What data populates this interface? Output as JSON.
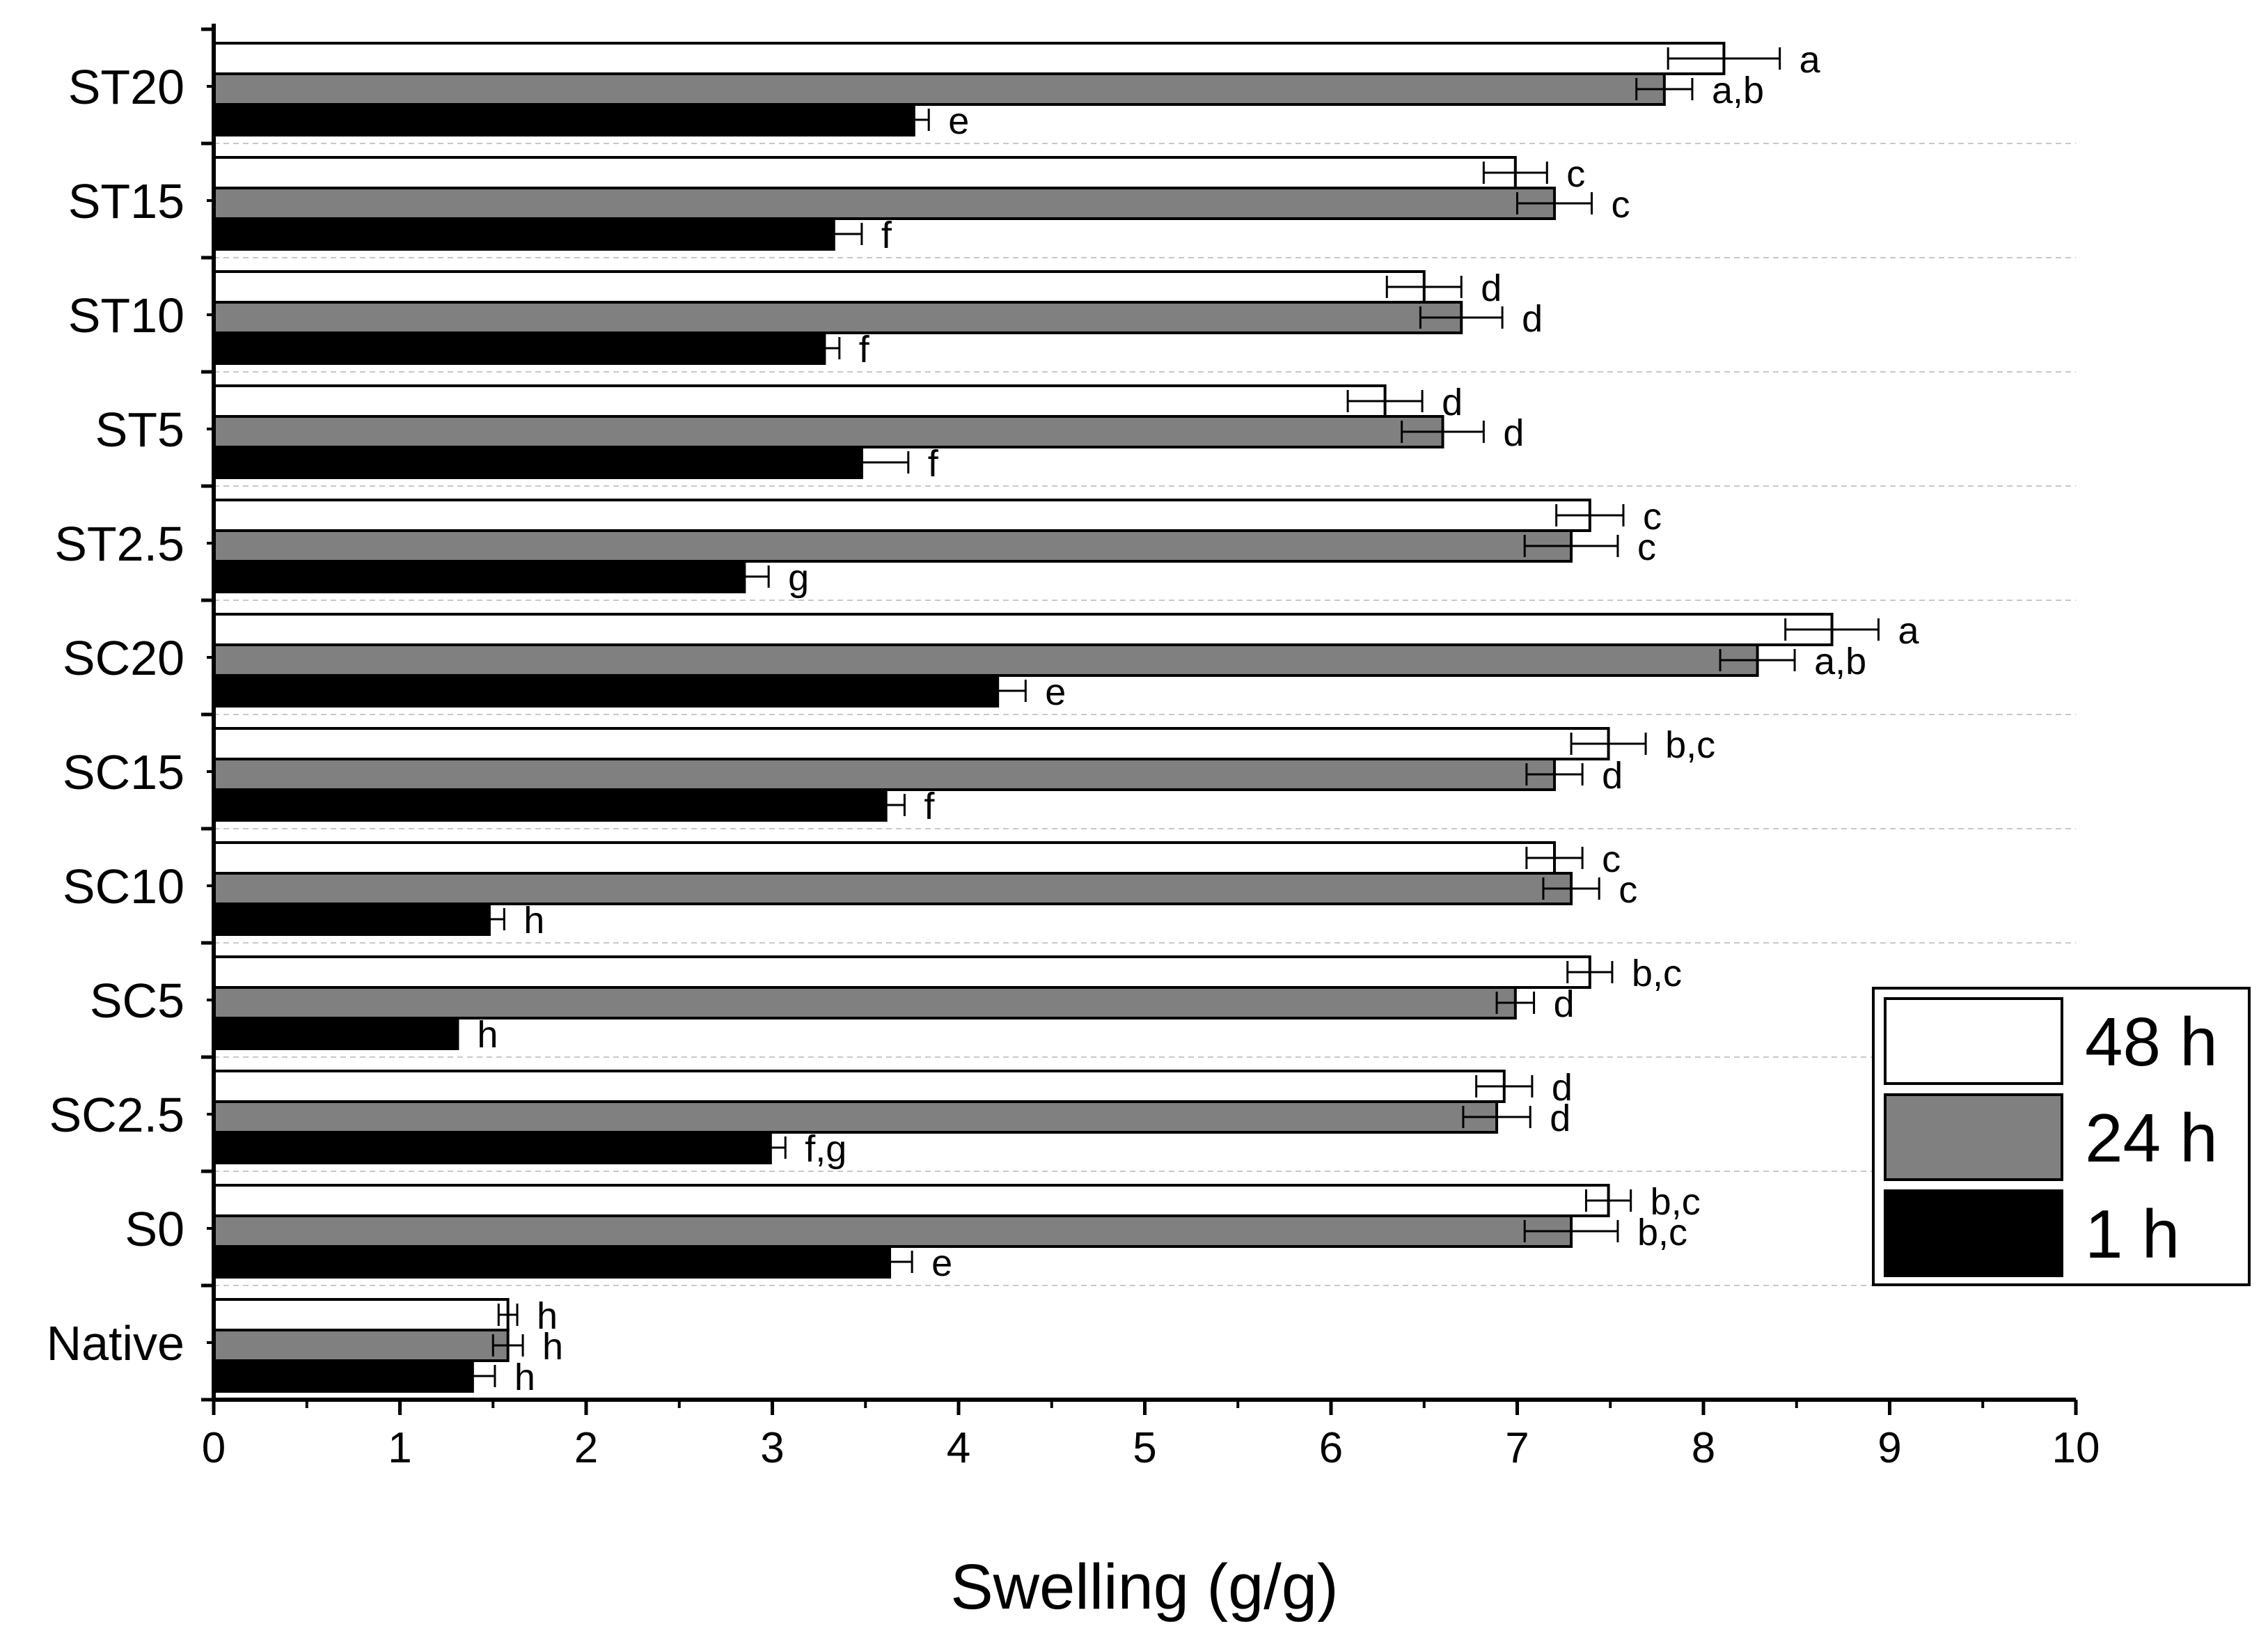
{
  "chart_data": {
    "type": "bar",
    "orientation": "horizontal",
    "title": "",
    "xlabel": "Swelling (g/g)",
    "ylabel": "",
    "xlim": [
      0,
      10
    ],
    "xticks": [
      "0",
      "1",
      "2",
      "3",
      "4",
      "5",
      "6",
      "7",
      "8",
      "9",
      "10"
    ],
    "categories": [
      "ST20",
      "ST15",
      "ST10",
      "ST5",
      "ST2.5",
      "SC20",
      "SC15",
      "SC10",
      "SC5",
      "SC2.5",
      "S0",
      "Native"
    ],
    "legend_position": "right",
    "series": [
      {
        "name": "48 h",
        "color": "#ffffff",
        "values": [
          8.11,
          6.99,
          6.5,
          6.29,
          7.39,
          8.69,
          7.49,
          7.2,
          7.39,
          6.93,
          7.49,
          1.58
        ],
        "errors": [
          0.3,
          0.17,
          0.2,
          0.2,
          0.18,
          0.25,
          0.2,
          0.15,
          0.12,
          0.15,
          0.12,
          0.05
        ],
        "letters": [
          "a",
          "c",
          "d",
          "d",
          "c",
          "a",
          "b,c",
          "c",
          "b,c",
          "d",
          "b,c",
          "h"
        ]
      },
      {
        "name": "24 h",
        "color": "#808080",
        "values": [
          7.79,
          7.2,
          6.7,
          6.6,
          7.29,
          8.29,
          7.2,
          7.29,
          6.99,
          6.89,
          7.29,
          1.58
        ],
        "errors": [
          0.15,
          0.2,
          0.22,
          0.22,
          0.25,
          0.2,
          0.15,
          0.15,
          0.1,
          0.18,
          0.25,
          0.08
        ],
        "letters": [
          "a,b",
          "c",
          "d",
          "d",
          "c",
          "a,b",
          "d",
          "c",
          "d",
          "d",
          "b,c",
          "h"
        ]
      },
      {
        "name": "1 h",
        "color": "#000000",
        "values": [
          3.76,
          3.33,
          3.28,
          3.48,
          2.85,
          4.21,
          3.61,
          1.48,
          1.31,
          2.99,
          3.63,
          1.39
        ],
        "errors": [
          0.08,
          0.15,
          0.08,
          0.25,
          0.13,
          0.15,
          0.1,
          0.08,
          0.0,
          0.08,
          0.12,
          0.12
        ],
        "letters": [
          "e",
          "f",
          "f",
          "f",
          "g",
          "e",
          "f",
          "h",
          "h",
          "f,g",
          "e",
          "h"
        ]
      }
    ]
  }
}
